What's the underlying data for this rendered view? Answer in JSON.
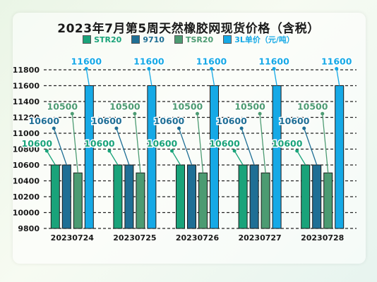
{
  "chart_data": {
    "type": "bar",
    "title": "2023年7月第5周天然橡胶网现货价格（含税）",
    "categories": [
      "20230724",
      "20230725",
      "20230726",
      "20230727",
      "20230728"
    ],
    "series": [
      {
        "name": "STR20",
        "values": [
          10600,
          10600,
          10600,
          10600,
          10600
        ],
        "color": "#1aa37a"
      },
      {
        "name": "9710",
        "values": [
          10600,
          10600,
          10600,
          10600,
          10600
        ],
        "color": "#1f6f95"
      },
      {
        "name": "TSR20",
        "values": [
          10500,
          10500,
          10500,
          10500,
          10500
        ],
        "color": "#4c9b72"
      },
      {
        "name": "3L单价（元/吨）",
        "values": [
          11600,
          11600,
          11600,
          11600,
          11600
        ],
        "color": "#16a9e6"
      }
    ],
    "ylim": [
      9800,
      11800
    ],
    "yticks": [
      9800,
      10000,
      10200,
      10400,
      10600,
      10800,
      11000,
      11200,
      11400,
      11600,
      11800
    ],
    "grid": true,
    "legend_position": "top"
  }
}
